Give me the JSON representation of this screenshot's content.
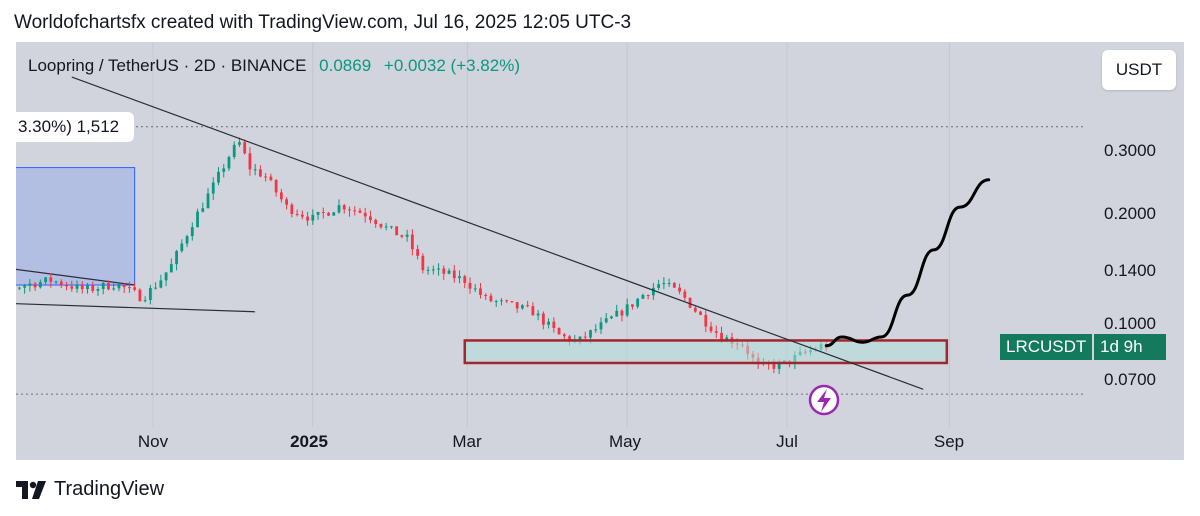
{
  "header": {
    "text": "Worldofchartsfx created with TradingView.com, Jul 16, 2025 12:05 UTC-3"
  },
  "symbol_bar": {
    "title": "Loopring / TetherUS · 2D · BINANCE",
    "price": "0.0869",
    "change": "+0.0032 (+3.82%)"
  },
  "currency_button": "USDT",
  "measure_label": "3.30%) 1,512",
  "ticker_tag": {
    "symbol": "LRCUSDT",
    "countdown": "1d 9h"
  },
  "footer": {
    "brand": "TradingView"
  },
  "colors": {
    "up": "#089981",
    "down": "#f23645",
    "zone_border": "#a3262c",
    "zone_fill": "#b2dfdb",
    "measure": "#2962ff"
  },
  "icons": [
    "flash-icon",
    "tradingview-logo-icon"
  ],
  "chart_data": {
    "type": "candlestick",
    "title": "Loopring / TetherUS · 2D · BINANCE",
    "y_scale": "log",
    "y_ticks": [
      {
        "value": 0.3,
        "label": "0.3000"
      },
      {
        "value": 0.2,
        "label": "0.2000"
      },
      {
        "value": 0.14,
        "label": "0.1400"
      },
      {
        "value": 0.1,
        "label": "0.1000"
      },
      {
        "value": 0.07,
        "label": "0.0700"
      }
    ],
    "x_ticks": [
      {
        "date": "2024-11-01",
        "label": "Nov",
        "bold": false
      },
      {
        "date": "2025-01-01",
        "label": "2025",
        "bold": true
      },
      {
        "date": "2025-03-01",
        "label": "Mar",
        "bold": false
      },
      {
        "date": "2025-05-01",
        "label": "May",
        "bold": false
      },
      {
        "date": "2025-07-01",
        "label": "Jul",
        "bold": false
      },
      {
        "date": "2025-09-01",
        "label": "Sep",
        "bold": false
      }
    ],
    "price_path": [
      [
        "2024-08-20",
        0.123
      ],
      [
        "2024-09-10",
        0.126
      ],
      [
        "2024-09-25",
        0.132
      ],
      [
        "2024-10-08",
        0.124
      ],
      [
        "2024-10-20",
        0.129
      ],
      [
        "2024-10-30",
        0.118
      ],
      [
        "2024-11-05",
        0.13
      ],
      [
        "2024-11-10",
        0.145
      ],
      [
        "2024-11-18",
        0.19
      ],
      [
        "2024-11-26",
        0.24
      ],
      [
        "2024-12-03",
        0.3
      ],
      [
        "2024-12-06",
        0.315
      ],
      [
        "2024-12-10",
        0.27
      ],
      [
        "2024-12-16",
        0.255
      ],
      [
        "2024-12-24",
        0.21
      ],
      [
        "2025-01-03",
        0.195
      ],
      [
        "2025-01-14",
        0.213
      ],
      [
        "2025-01-24",
        0.2
      ],
      [
        "2025-02-01",
        0.182
      ],
      [
        "2025-02-08",
        0.172
      ],
      [
        "2025-02-14",
        0.142
      ],
      [
        "2025-02-22",
        0.138
      ],
      [
        "2025-03-02",
        0.132
      ],
      [
        "2025-03-10",
        0.117
      ],
      [
        "2025-03-20",
        0.112
      ],
      [
        "2025-03-28",
        0.108
      ],
      [
        "2025-04-07",
        0.093
      ],
      [
        "2025-04-14",
        0.089
      ],
      [
        "2025-04-24",
        0.1
      ],
      [
        "2025-05-04",
        0.112
      ],
      [
        "2025-05-10",
        0.122
      ],
      [
        "2025-05-16",
        0.13
      ],
      [
        "2025-05-24",
        0.12
      ],
      [
        "2025-06-01",
        0.103
      ],
      [
        "2025-06-08",
        0.092
      ],
      [
        "2025-06-16",
        0.088
      ],
      [
        "2025-06-22",
        0.076
      ],
      [
        "2025-07-01",
        0.077
      ],
      [
        "2025-07-08",
        0.082
      ],
      [
        "2025-07-16",
        0.0869
      ]
    ],
    "trendlines": [
      {
        "name": "descending resistance",
        "from": [
          "2024-10-01",
          0.48
        ],
        "to": [
          "2025-08-22",
          0.066
        ]
      },
      {
        "name": "lower wedge line",
        "from": [
          "2024-08-20",
          0.115
        ],
        "to": [
          "2024-12-10",
          0.108
        ]
      },
      {
        "name": "upper wedge line",
        "from": [
          "2024-08-20",
          0.148
        ],
        "to": [
          "2024-10-25",
          0.128
        ]
      }
    ],
    "horizontal_levels": [
      0.35,
      0.064
    ],
    "support_zone": {
      "from": "2025-02-28",
      "to": "2025-08-31",
      "low": 0.078,
      "high": 0.09
    },
    "measure_box": {
      "from": "2024-08-20",
      "to": "2024-10-25",
      "low": 0.128,
      "high": 0.27
    },
    "projection_path": [
      [
        "2025-07-16",
        0.087
      ],
      [
        "2025-07-22",
        0.092
      ],
      [
        "2025-07-30",
        0.089
      ],
      [
        "2025-08-06",
        0.092
      ],
      [
        "2025-08-16",
        0.12
      ],
      [
        "2025-08-26",
        0.16
      ],
      [
        "2025-09-05",
        0.21
      ],
      [
        "2025-09-16",
        0.25
      ]
    ],
    "grid": true
  }
}
